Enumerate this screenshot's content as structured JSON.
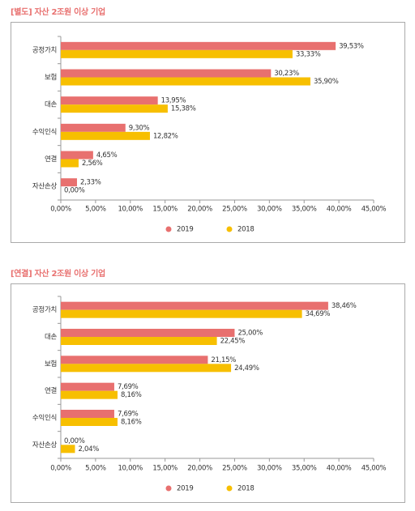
{
  "chart_data": [
    {
      "type": "bar",
      "orientation": "horizontal",
      "title": "[별도] 자산 2조원 이상 기업",
      "categories": [
        "공정가치",
        "보험",
        "대손",
        "수익인식",
        "연결",
        "자산손상"
      ],
      "series": [
        {
          "name": "2019",
          "color": "#e8706f",
          "values": [
            39.53,
            30.23,
            13.95,
            9.3,
            4.65,
            2.33
          ],
          "value_labels": [
            "39,53%",
            "30,23%",
            "13,95%",
            "9,30%",
            "4,65%",
            "2,33%"
          ]
        },
        {
          "name": "2018",
          "color": "#f7bf00",
          "values": [
            33.33,
            35.9,
            15.38,
            12.82,
            2.56,
            0.0
          ],
          "value_labels": [
            "33,33%",
            "35,90%",
            "15,38%",
            "12,82%",
            "2,56%",
            "0,00%"
          ]
        }
      ],
      "xlim": [
        0,
        45
      ],
      "xticks": [
        {
          "value": 0,
          "label": "0,00%"
        },
        {
          "value": 5,
          "label": "5,00%"
        },
        {
          "value": 10,
          "label": "10,00%"
        },
        {
          "value": 15,
          "label": "15,00%"
        },
        {
          "value": 20,
          "label": "20,00%"
        },
        {
          "value": 25,
          "label": "25,00%"
        },
        {
          "value": 30,
          "label": "30,00%"
        },
        {
          "value": 35,
          "label": "35,00%"
        },
        {
          "value": 40,
          "label": "40,00%"
        },
        {
          "value": 45,
          "label": "45,00%"
        }
      ],
      "grid": false,
      "legend": "bottom"
    },
    {
      "type": "bar",
      "orientation": "horizontal",
      "title": "[연결] 자산 2조원 이상 기업",
      "categories": [
        "공정가치",
        "대손",
        "보험",
        "연결",
        "수익인식",
        "자산손상"
      ],
      "series": [
        {
          "name": "2019",
          "color": "#e8706f",
          "values": [
            38.46,
            25.0,
            21.15,
            7.69,
            7.69,
            0.0
          ],
          "value_labels": [
            "38,46%",
            "25,00%",
            "21,15%",
            "7,69%",
            "7,69%",
            "0,00%"
          ]
        },
        {
          "name": "2018",
          "color": "#f7bf00",
          "values": [
            34.69,
            22.45,
            24.49,
            8.16,
            8.16,
            2.04
          ],
          "value_labels": [
            "34,69%",
            "22,45%",
            "24,49%",
            "8,16%",
            "8,16%",
            "2,04%"
          ]
        }
      ],
      "xlim": [
        0,
        45
      ],
      "xticks": [
        {
          "value": 0,
          "label": "0,00%"
        },
        {
          "value": 5,
          "label": "5,00%"
        },
        {
          "value": 10,
          "label": "10,00%"
        },
        {
          "value": 15,
          "label": "15,00%"
        },
        {
          "value": 20,
          "label": "20,00%"
        },
        {
          "value": 25,
          "label": "25,00%"
        },
        {
          "value": 30,
          "label": "30,00%"
        },
        {
          "value": 35,
          "label": "35,00%"
        },
        {
          "value": 40,
          "label": "40,00%"
        },
        {
          "value": 45,
          "label": "45,00%"
        }
      ],
      "grid": false,
      "legend": "bottom"
    }
  ]
}
